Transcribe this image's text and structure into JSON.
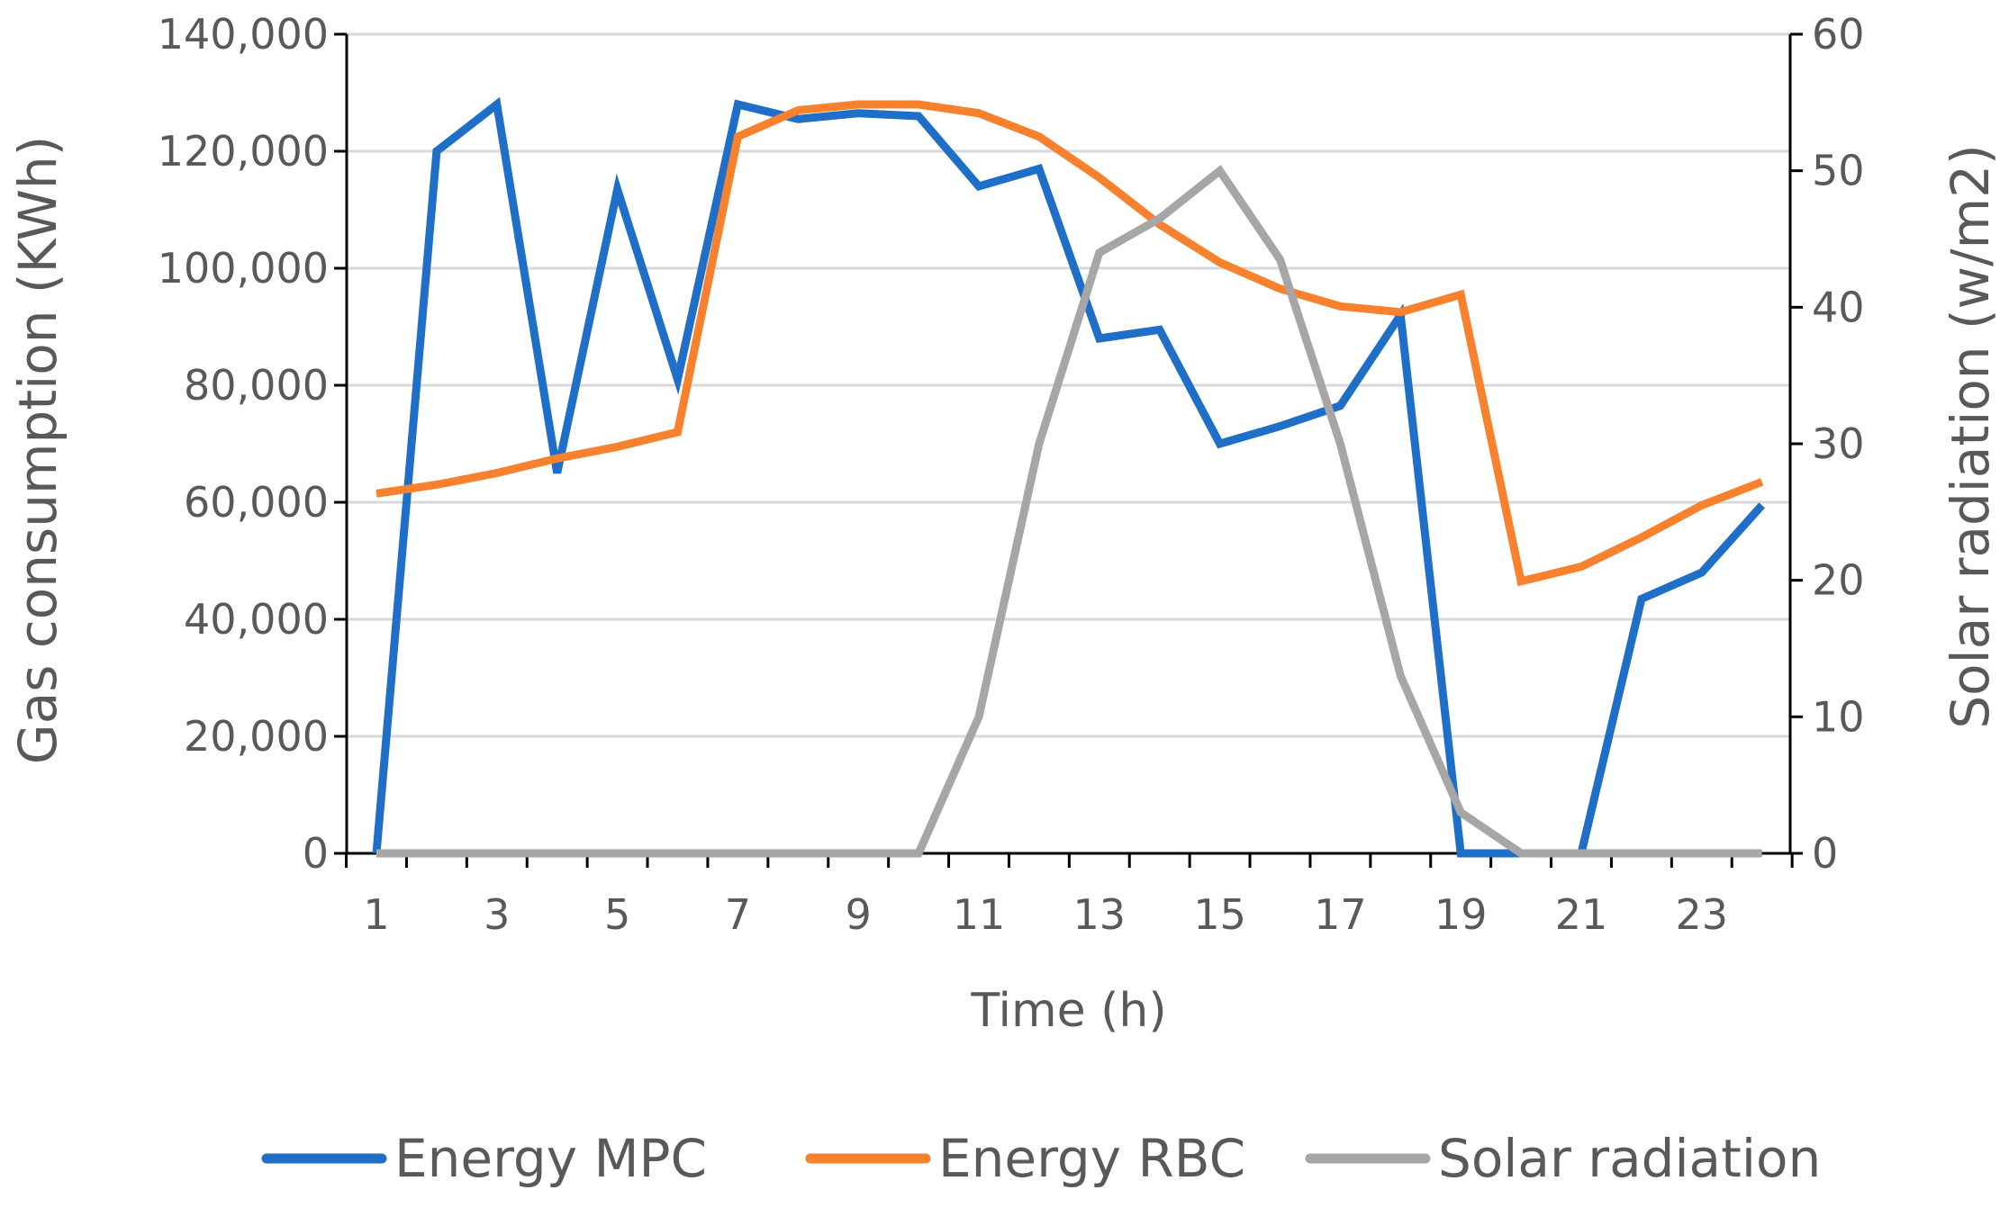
{
  "chart_data": {
    "type": "line",
    "xlabel": "Time (h)",
    "ylabel": "Gas consumption (KWh)",
    "y2label": "Solar radiation (w/m2)",
    "x": [
      1,
      2,
      3,
      4,
      5,
      6,
      7,
      8,
      9,
      10,
      11,
      12,
      13,
      14,
      15,
      16,
      17,
      18,
      19,
      20,
      21,
      22,
      23,
      24
    ],
    "x_ticks": [
      "1",
      "3",
      "5",
      "7",
      "9",
      "11",
      "13",
      "15",
      "17",
      "19",
      "21",
      "23"
    ],
    "ylim": [
      0,
      140000
    ],
    "y_ticks": [
      "0",
      "20,000",
      "40,000",
      "60,000",
      "80,000",
      "100,000",
      "120,000",
      "140,000"
    ],
    "y2lim": [
      0,
      60
    ],
    "y2_ticks": [
      "0",
      "10",
      "20",
      "30",
      "40",
      "50",
      "60"
    ],
    "grid": true,
    "legend_position": "bottom",
    "series": [
      {
        "name": "Energy MPC",
        "axis": "left",
        "color": "#1f6fc8",
        "values": [
          0,
          120000,
          128000,
          65000,
          113500,
          81000,
          128000,
          125500,
          126500,
          126000,
          114000,
          117000,
          88000,
          89500,
          70000,
          73000,
          76500,
          92000,
          0,
          0,
          0,
          43500,
          48000,
          59500
        ]
      },
      {
        "name": "Energy RBC",
        "axis": "left",
        "color": "#f7812c",
        "values": [
          61500,
          63000,
          65000,
          67500,
          69500,
          72000,
          122500,
          127000,
          128000,
          128000,
          126500,
          122500,
          115500,
          107500,
          101000,
          96500,
          93500,
          92500,
          95500,
          46500,
          49000,
          54000,
          59500,
          63500
        ]
      },
      {
        "name": "Solar radiation",
        "axis": "right",
        "color": "#a6a6a6",
        "values": [
          0,
          0,
          0,
          0,
          0,
          0,
          0,
          0,
          0,
          0,
          10,
          30,
          44,
          46.5,
          50,
          43.5,
          30,
          13,
          3,
          0,
          0,
          0,
          0,
          0
        ]
      }
    ]
  }
}
